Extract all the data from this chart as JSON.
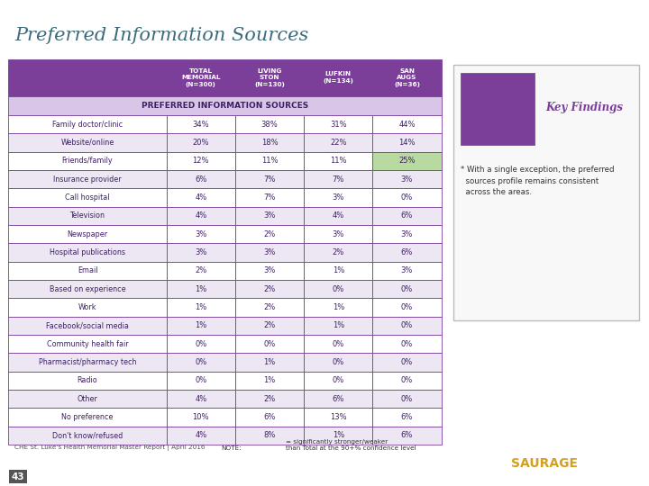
{
  "title": "Preferred Information Sources",
  "title_color": "#3d6b7a",
  "header_bg": "#7b3f99",
  "subheader_bg": "#d8c5e8",
  "row_colors": [
    "#ffffff",
    "#ede7f3"
  ],
  "highlight_green": "#b8d9a0",
  "highlight_pink": "#f4b8a0",
  "col_headers": [
    "TOTAL\nMEMORIAL\n(N=300)",
    "LIVING\nSTON\n(N=130)",
    "LUFKIN\n(N=134)",
    "SAN\nAUGS\n(N=36)"
  ],
  "row_labels": [
    "Family doctor/clinic",
    "Website/online",
    "Friends/family",
    "Insurance provider",
    "Call hospital",
    "Television",
    "Newspaper",
    "Hospital publications",
    "Email",
    "Based on experience",
    "Work",
    "Facebook/social media",
    "Community health fair",
    "Pharmacist/pharmacy tech",
    "Radio",
    "Other",
    "No preference",
    "Don't know/refused"
  ],
  "data": [
    [
      "34%",
      "38%",
      "31%",
      "44%"
    ],
    [
      "20%",
      "18%",
      "22%",
      "14%"
    ],
    [
      "12%",
      "11%",
      "11%",
      "25%"
    ],
    [
      "6%",
      "7%",
      "7%",
      "3%"
    ],
    [
      "4%",
      "7%",
      "3%",
      "0%"
    ],
    [
      "4%",
      "3%",
      "4%",
      "6%"
    ],
    [
      "3%",
      "2%",
      "3%",
      "3%"
    ],
    [
      "3%",
      "3%",
      "2%",
      "6%"
    ],
    [
      "2%",
      "3%",
      "1%",
      "3%"
    ],
    [
      "1%",
      "2%",
      "0%",
      "0%"
    ],
    [
      "1%",
      "2%",
      "1%",
      "0%"
    ],
    [
      "1%",
      "2%",
      "1%",
      "0%"
    ],
    [
      "0%",
      "0%",
      "0%",
      "0%"
    ],
    [
      "0%",
      "1%",
      "0%",
      "0%"
    ],
    [
      "0%",
      "1%",
      "0%",
      "0%"
    ],
    [
      "4%",
      "2%",
      "6%",
      "0%"
    ],
    [
      "10%",
      "6%",
      "13%",
      "6%"
    ],
    [
      "4%",
      "8%",
      "1%",
      "6%"
    ]
  ],
  "highlighted_cells": [
    [
      2,
      3
    ]
  ],
  "subheader": "PREFERRED INFORMATION SOURCES",
  "footer_left": "CHE St. Luke's Health Memorial Master Report | April 2016",
  "page_number": "43",
  "table_border_color": "#7b3f99",
  "cell_text_color": "#3d2060",
  "key_box_border": "#bbbbbb",
  "key_text_color": "#7b3f99",
  "key_body_color": "#333333",
  "key_title": "Key Findings",
  "key_body": "* With a single exception, the preferred\n  sources profile remains consistent\n  across the areas.",
  "note_text": "NOTE:        = significantly stronger/weaker\nthan Total at the 90+% confidence level",
  "saurage_bg": "#1a3060",
  "saurage_text": "#d4a020",
  "bottom_bar_color": "#2a1a35"
}
